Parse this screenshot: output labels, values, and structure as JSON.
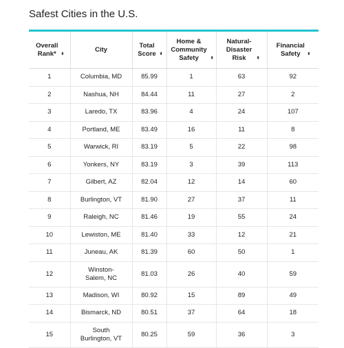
{
  "title": "Safest Cities in the U.S.",
  "sort_icon": "⬍",
  "columns": [
    {
      "label": "Overall Rank*",
      "sortable": true
    },
    {
      "label": "City",
      "sortable": false
    },
    {
      "label": "Total Score",
      "sortable": true
    },
    {
      "label": "Home & Community Safety",
      "sortable": true
    },
    {
      "label": "Natural-Disaster Risk",
      "sortable": true
    },
    {
      "label": "Financial Safety",
      "sortable": true
    }
  ],
  "rows": [
    {
      "rank": "1",
      "city": "Columbia, MD",
      "score": "85.99",
      "home": "1",
      "disaster": "63",
      "financial": "92"
    },
    {
      "rank": "2",
      "city": "Nashua, NH",
      "score": "84.44",
      "home": "11",
      "disaster": "27",
      "financial": "2"
    },
    {
      "rank": "3",
      "city": "Laredo, TX",
      "score": "83.96",
      "home": "4",
      "disaster": "24",
      "financial": "107"
    },
    {
      "rank": "4",
      "city": "Portland, ME",
      "score": "83.49",
      "home": "16",
      "disaster": "11",
      "financial": "8"
    },
    {
      "rank": "5",
      "city": "Warwick, RI",
      "score": "83.19",
      "home": "5",
      "disaster": "22",
      "financial": "98"
    },
    {
      "rank": "6",
      "city": "Yonkers, NY",
      "score": "83.19",
      "home": "3",
      "disaster": "39",
      "financial": "113"
    },
    {
      "rank": "7",
      "city": "Gilbert, AZ",
      "score": "82.04",
      "home": "12",
      "disaster": "14",
      "financial": "60"
    },
    {
      "rank": "8",
      "city": "Burlington, VT",
      "score": "81.90",
      "home": "27",
      "disaster": "37",
      "financial": "11"
    },
    {
      "rank": "9",
      "city": "Raleigh, NC",
      "score": "81.46",
      "home": "19",
      "disaster": "55",
      "financial": "24"
    },
    {
      "rank": "10",
      "city": "Lewiston, ME",
      "score": "81.40",
      "home": "33",
      "disaster": "12",
      "financial": "21"
    },
    {
      "rank": "11",
      "city": "Juneau, AK",
      "score": "81.39",
      "home": "60",
      "disaster": "50",
      "financial": "1"
    },
    {
      "rank": "12",
      "city": "Winston-Salem, NC",
      "score": "81.03",
      "home": "26",
      "disaster": "40",
      "financial": "59"
    },
    {
      "rank": "13",
      "city": "Madison, WI",
      "score": "80.92",
      "home": "15",
      "disaster": "89",
      "financial": "49"
    },
    {
      "rank": "14",
      "city": "Bismarck, ND",
      "score": "80.51",
      "home": "37",
      "disaster": "64",
      "financial": "18"
    },
    {
      "rank": "15",
      "city": "South Burlington, VT",
      "score": "80.25",
      "home": "59",
      "disaster": "36",
      "financial": "3"
    }
  ]
}
